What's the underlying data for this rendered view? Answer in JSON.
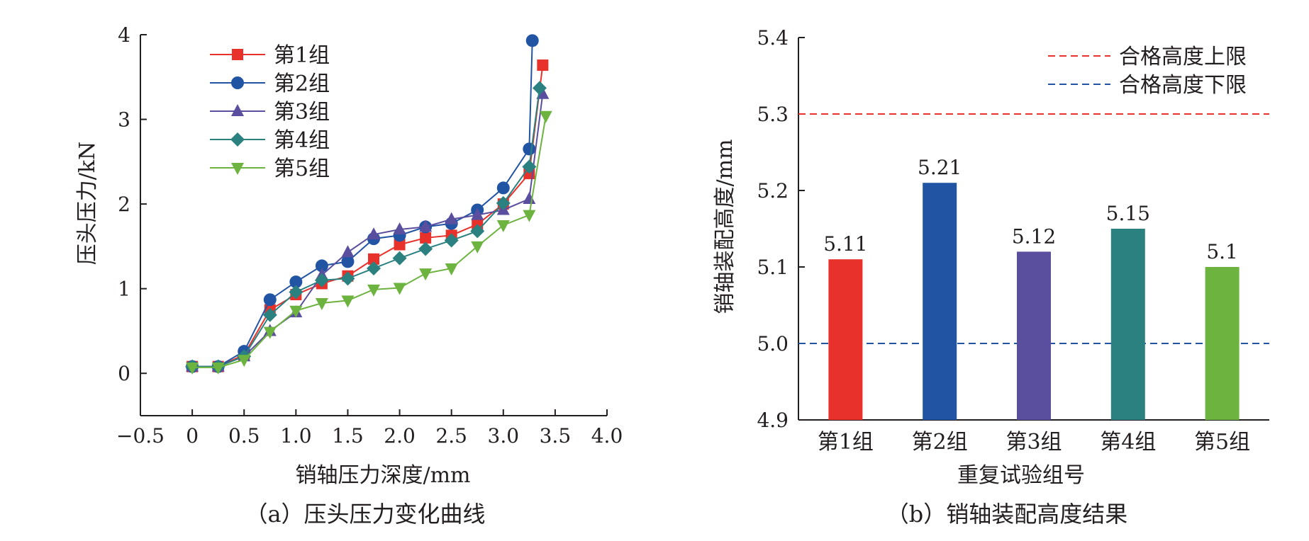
{
  "chart_data": [
    {
      "type": "line",
      "caption": "（a）压头压力变化曲线",
      "xlabel": "销轴压力深度/mm",
      "ylabel": "压头压力/kN",
      "xlim": [
        -0.5,
        4.0
      ],
      "ylim": [
        -0.5,
        4
      ],
      "xticks": [
        -0.5,
        0,
        0.5,
        1.0,
        1.5,
        2.0,
        2.5,
        3.0,
        3.5,
        4.0
      ],
      "xtick_labels": [
        "−0.5",
        "0",
        "0.5",
        "1.0",
        "1.5",
        "2.0",
        "2.5",
        "3.0",
        "3.5",
        "4.0"
      ],
      "yticks": [
        0,
        1,
        2,
        3,
        4
      ],
      "ytick_labels": [
        "0",
        "1",
        "2",
        "3",
        "4"
      ],
      "legend_position": "top-left",
      "grid": false,
      "series": [
        {
          "name": "第1组",
          "color": "#e8312b",
          "marker": "square",
          "x": [
            0,
            0.25,
            0.5,
            0.75,
            1.0,
            1.25,
            1.5,
            1.75,
            2.0,
            2.25,
            2.5,
            2.75,
            3.0,
            3.25,
            3.38
          ],
          "y": [
            0.08,
            0.08,
            0.22,
            0.75,
            0.93,
            1.06,
            1.15,
            1.35,
            1.52,
            1.6,
            1.63,
            1.76,
            2.0,
            2.36,
            3.64
          ]
        },
        {
          "name": "第2组",
          "color": "#2254a4",
          "marker": "circle",
          "x": [
            0,
            0.25,
            0.5,
            0.75,
            1.0,
            1.25,
            1.5,
            1.75,
            2.0,
            2.25,
            2.5,
            2.75,
            3.0,
            3.25,
            3.28
          ],
          "y": [
            0.08,
            0.08,
            0.26,
            0.87,
            1.08,
            1.27,
            1.32,
            1.59,
            1.63,
            1.73,
            1.77,
            1.93,
            2.19,
            2.65,
            3.93
          ]
        },
        {
          "name": "第3组",
          "color": "#5a4e9e",
          "marker": "triangle-up",
          "x": [
            0,
            0.25,
            0.5,
            0.75,
            1.0,
            1.25,
            1.5,
            1.75,
            2.0,
            2.25,
            2.5,
            2.75,
            3.0,
            3.25,
            3.38
          ],
          "y": [
            0.08,
            0.08,
            0.2,
            0.5,
            0.72,
            1.16,
            1.43,
            1.64,
            1.7,
            1.73,
            1.82,
            1.87,
            1.93,
            2.06,
            3.3
          ]
        },
        {
          "name": "第4组",
          "color": "#2b8080",
          "marker": "diamond",
          "x": [
            0,
            0.25,
            0.5,
            0.75,
            1.0,
            1.25,
            1.5,
            1.75,
            2.0,
            2.25,
            2.5,
            2.75,
            3.0,
            3.25,
            3.35
          ],
          "y": [
            0.08,
            0.08,
            0.2,
            0.69,
            0.96,
            1.1,
            1.12,
            1.24,
            1.36,
            1.47,
            1.57,
            1.68,
            2.01,
            2.44,
            3.37
          ]
        },
        {
          "name": "第5组",
          "color": "#6db33f",
          "marker": "triangle-down",
          "x": [
            0,
            0.25,
            0.5,
            0.75,
            1.0,
            1.25,
            1.5,
            1.75,
            2.0,
            2.25,
            2.5,
            2.75,
            3.0,
            3.25,
            3.41
          ],
          "y": [
            0.07,
            0.07,
            0.16,
            0.49,
            0.74,
            0.83,
            0.86,
            0.99,
            1.01,
            1.18,
            1.24,
            1.5,
            1.75,
            1.87,
            3.04
          ]
        }
      ]
    },
    {
      "type": "bar",
      "caption": "（b）销轴装配高度结果",
      "xlabel": "重复试验组号",
      "ylabel": "销轴装配高度/mm",
      "categories": [
        "第1组",
        "第2组",
        "第3组",
        "第4组",
        "第5组"
      ],
      "values": [
        5.11,
        5.21,
        5.12,
        5.15,
        5.1
      ],
      "value_labels": [
        "5.11",
        "5.21",
        "5.12",
        "5.15",
        "5.1"
      ],
      "colors": [
        "#e8312b",
        "#2254a4",
        "#5a4e9e",
        "#2b8080",
        "#6db33f"
      ],
      "ylim": [
        4.9,
        5.4
      ],
      "yticks": [
        4.9,
        5.0,
        5.1,
        5.2,
        5.3,
        5.4
      ],
      "ytick_labels": [
        "4.9",
        "5.0",
        "5.1",
        "5.2",
        "5.3",
        "5.4"
      ],
      "reference_lines": [
        {
          "name": "合格高度上限",
          "value": 5.3,
          "color": "#e8312b",
          "style": "dashed"
        },
        {
          "name": "合格高度下限",
          "value": 5.0,
          "color": "#2254a4",
          "style": "dashed"
        }
      ],
      "legend_position": "top-right",
      "grid": false
    }
  ]
}
